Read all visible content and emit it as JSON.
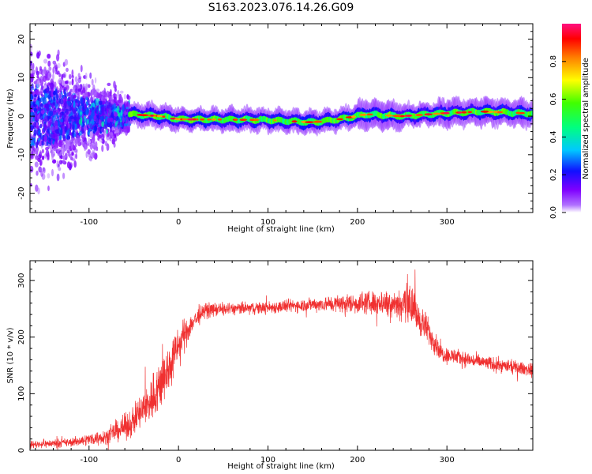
{
  "title": "S163.2023.076.14.26.G09",
  "colors": {
    "snr_line": "#f03030",
    "background": "#ffffff",
    "axis": "#000000"
  },
  "chart_data": [
    {
      "type": "heatmap",
      "name": "spectrogram",
      "xlabel": "Height of straight line (km)",
      "ylabel": "Frequency (Hz)",
      "xlim": [
        -166,
        396
      ],
      "ylim": [
        -25,
        24
      ],
      "x_ticks": [
        -100,
        0,
        100,
        200,
        300
      ],
      "y_ticks": [
        -20,
        -10,
        0,
        10,
        20
      ],
      "colorbar": {
        "label": "Normalized spectral amplitude",
        "range": [
          0,
          1
        ],
        "ticks": [
          "0.0",
          "0.2",
          "0.4",
          "0.6",
          "0.8"
        ],
        "colormap": [
          "#ffffff",
          "#7f00ff",
          "#0000ff",
          "#00ffff",
          "#00ff00",
          "#ffff00",
          "#ff0000",
          "#ff0080"
        ]
      },
      "noise_region": {
        "x": [
          -166,
          -55
        ],
        "freq_spread_hz": 24
      },
      "carrier_track": [
        {
          "x": -55,
          "f": 0.5
        },
        {
          "x": -20,
          "f": 0.0
        },
        {
          "x": 0,
          "f": -0.8
        },
        {
          "x": 60,
          "f": -0.9
        },
        {
          "x": 100,
          "f": -1.0
        },
        {
          "x": 150,
          "f": -1.6
        },
        {
          "x": 180,
          "f": -0.8
        },
        {
          "x": 210,
          "f": 0.5
        },
        {
          "x": 250,
          "f": 0.0
        },
        {
          "x": 300,
          "f": 0.8
        },
        {
          "x": 340,
          "f": 1.2
        },
        {
          "x": 396,
          "f": 0.7
        }
      ]
    },
    {
      "type": "line",
      "name": "snr",
      "xlabel": "Height of straight line (km)",
      "ylabel": "SNR (10 * v/v)",
      "xlim": [
        -166,
        396
      ],
      "ylim": [
        0,
        335
      ],
      "x_ticks": [
        -100,
        0,
        100,
        200,
        300
      ],
      "y_ticks": [
        0,
        100,
        200,
        300
      ],
      "envelope": [
        {
          "x": -166,
          "mean": 10,
          "noise": 6
        },
        {
          "x": -120,
          "mean": 14,
          "noise": 7
        },
        {
          "x": -80,
          "mean": 25,
          "noise": 12
        },
        {
          "x": -55,
          "mean": 45,
          "noise": 22
        },
        {
          "x": -35,
          "mean": 80,
          "noise": 35
        },
        {
          "x": -15,
          "mean": 130,
          "noise": 45
        },
        {
          "x": 0,
          "mean": 185,
          "noise": 30
        },
        {
          "x": 15,
          "mean": 225,
          "noise": 18
        },
        {
          "x": 30,
          "mean": 248,
          "noise": 12
        },
        {
          "x": 60,
          "mean": 250,
          "noise": 10
        },
        {
          "x": 100,
          "mean": 252,
          "noise": 10
        },
        {
          "x": 150,
          "mean": 258,
          "noise": 11
        },
        {
          "x": 200,
          "mean": 260,
          "noise": 17
        },
        {
          "x": 240,
          "mean": 262,
          "noise": 22
        },
        {
          "x": 258,
          "mean": 255,
          "noise": 30
        },
        {
          "x": 275,
          "mean": 220,
          "noise": 25
        },
        {
          "x": 295,
          "mean": 170,
          "noise": 14
        },
        {
          "x": 330,
          "mean": 158,
          "noise": 12
        },
        {
          "x": 360,
          "mean": 150,
          "noise": 11
        },
        {
          "x": 396,
          "mean": 142,
          "noise": 10
        }
      ]
    }
  ]
}
